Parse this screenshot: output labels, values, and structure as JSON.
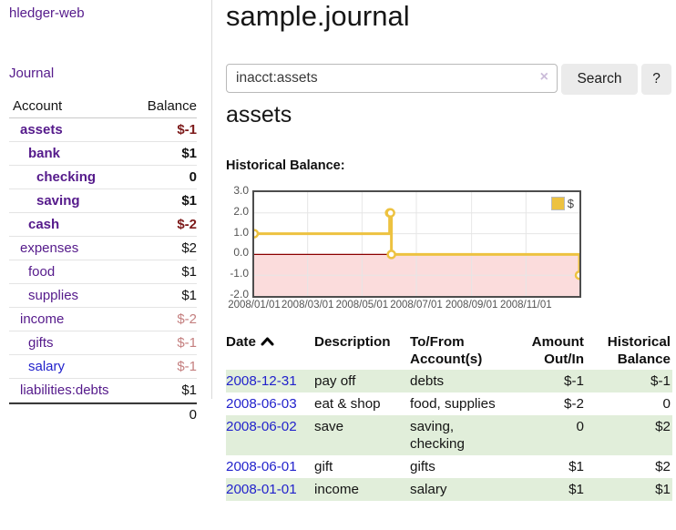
{
  "app": {
    "title": "hledger-web",
    "nav_journal": "Journal"
  },
  "sidebar": {
    "accounts_header": {
      "account": "Account",
      "balance": "Balance"
    },
    "accounts": [
      {
        "name": "assets",
        "balance": "$-1",
        "depth": 0,
        "bold": true,
        "balance_class": "neg-dark"
      },
      {
        "name": "bank",
        "balance": "$1",
        "depth": 1,
        "bold": true,
        "balance_class": "pos"
      },
      {
        "name": "checking",
        "balance": "0",
        "depth": 2,
        "bold": true,
        "balance_class": "pos"
      },
      {
        "name": "saving",
        "balance": "$1",
        "depth": 2,
        "bold": true,
        "balance_class": "pos"
      },
      {
        "name": "cash",
        "balance": "$-2",
        "depth": 1,
        "bold": true,
        "balance_class": "neg-dark"
      },
      {
        "name": "expenses",
        "balance": "$2",
        "depth": 0,
        "bold": false,
        "balance_class": "pos"
      },
      {
        "name": "food",
        "balance": "$1",
        "depth": 1,
        "bold": false,
        "balance_class": "pos"
      },
      {
        "name": "supplies",
        "balance": "$1",
        "depth": 1,
        "bold": false,
        "balance_class": "pos"
      },
      {
        "name": "income",
        "balance": "$-2",
        "depth": 0,
        "bold": false,
        "balance_class": "neg-light"
      },
      {
        "name": "gifts",
        "balance": "$-1",
        "depth": 1,
        "bold": false,
        "balance_class": "neg-light"
      },
      {
        "name": "salary",
        "balance": "$-1",
        "depth": 1,
        "bold": false,
        "balance_class": "neg-light",
        "link_color": "blue"
      },
      {
        "name": "liabilities:debts",
        "balance": "$1",
        "depth": 0,
        "bold": false,
        "balance_class": "pos"
      }
    ],
    "total": "0"
  },
  "header": {
    "title": "sample.journal"
  },
  "search": {
    "value": "inacct:assets",
    "clear_label": "×",
    "button": "Search",
    "help_button": "?"
  },
  "main": {
    "account_title": "assets",
    "chart_label": "Historical Balance:"
  },
  "chart_data": {
    "type": "line",
    "title": "Historical Balance:",
    "series": [
      {
        "name": "$",
        "color": "#edc240",
        "steps": true,
        "points": [
          [
            "2008-01-01",
            1.0
          ],
          [
            "2008-06-01",
            2.0
          ],
          [
            "2008-06-02",
            2.0
          ],
          [
            "2008-06-03",
            0.0
          ],
          [
            "2008-12-31",
            -1.0
          ]
        ]
      }
    ],
    "ylim": [
      -2.0,
      3.0
    ],
    "yticks": [
      "3.0",
      "2.0",
      "1.0",
      "0.0",
      "-1.0",
      "-2.0"
    ],
    "xticks": [
      "2008/01/01",
      "2008/03/01",
      "2008/05/01",
      "2008/07/01",
      "2008/09/01",
      "2008/11/01"
    ],
    "x_range": [
      "2008-01-01",
      "2008-12-31"
    ],
    "grid": true,
    "legend": "$",
    "legend_position": "top-right",
    "negative_region_color": "#fbdcdc",
    "zero_line_color": "#8b0000",
    "grid_color": "#e6e6e6",
    "tick_label_color": "#545454"
  },
  "register": {
    "headers": {
      "date": "Date",
      "description": "Description",
      "account_line1": "To/From",
      "account_line2": "Account(s)",
      "amount_line1": "Amount",
      "amount_line2": "Out/In",
      "balance_line1": "Historical",
      "balance_line2": "Balance"
    },
    "rows": [
      {
        "date": "2008-12-31",
        "description": "pay off",
        "accounts": "debts",
        "amount": "$-1",
        "amount_negative": true,
        "balance": "$-1",
        "balance_negative": true
      },
      {
        "date": "2008-06-03",
        "description": "eat & shop",
        "accounts": "food, supplies",
        "amount": "$-2",
        "amount_negative": true,
        "balance": "0",
        "balance_negative": false
      },
      {
        "date": "2008-06-02",
        "description": "save",
        "accounts": "saving, checking",
        "amount": "0",
        "amount_negative": false,
        "balance": "$2",
        "balance_negative": false
      },
      {
        "date": "2008-06-01",
        "description": "gift",
        "accounts": "gifts",
        "amount": "$1",
        "amount_negative": false,
        "balance": "$2",
        "balance_negative": false
      },
      {
        "date": "2008-01-01",
        "description": "income",
        "accounts": "salary",
        "amount": "$1",
        "amount_negative": false,
        "balance": "$1",
        "balance_negative": false
      }
    ]
  },
  "colors": {
    "link_purple": "#551a8b",
    "link_blue": "#2222cc",
    "negative_dark": "#7d1a1a",
    "negative_light": "#c47f7f",
    "table_negative": "#8e1f1f",
    "row_green": "#e1eeda",
    "chart_line": "#edc240",
    "chart_negative_fill": "#fbdcdc",
    "chart_zero_line": "#8b0000"
  }
}
